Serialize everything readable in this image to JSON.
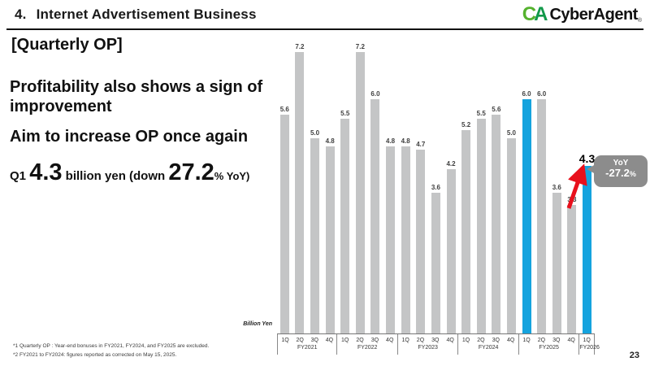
{
  "header": {
    "number": "4.",
    "title": "Internet Advertisement Business"
  },
  "logo": {
    "mark_c": "C",
    "mark_a": "A",
    "word": "CyberAgent",
    "registered": "®"
  },
  "left": {
    "section_label": "[Quarterly OP]",
    "message1_lines": [
      "Profitability also shows a sign of",
      "improvement"
    ],
    "message2": "Aim to increase OP once again",
    "q1_prefix": "Q1 ",
    "q1_value": "4.3",
    "q1_mid": " billion yen (down ",
    "q1_pct": "27.2",
    "q1_suffix": "% YoY)"
  },
  "chart_data": {
    "type": "bar",
    "unit_label": "Billion Yen",
    "bar_color": "#c4c5c6",
    "highlight_color": "#15a3de",
    "ylim": [
      0,
      7.5
    ],
    "groups": [
      {
        "fy": "FY2021",
        "quarters": [
          "1Q",
          "2Q",
          "3Q",
          "4Q"
        ],
        "values": [
          5.6,
          7.2,
          5.0,
          4.8
        ],
        "highlight": [
          false,
          false,
          false,
          false
        ]
      },
      {
        "fy": "FY2022",
        "quarters": [
          "1Q",
          "2Q",
          "3Q",
          "4Q"
        ],
        "values": [
          5.5,
          7.2,
          6.0,
          4.8
        ],
        "highlight": [
          false,
          false,
          false,
          false
        ]
      },
      {
        "fy": "FY2023",
        "quarters": [
          "1Q",
          "2Q",
          "3Q",
          "4Q"
        ],
        "values": [
          4.8,
          4.7,
          3.6,
          4.2
        ],
        "highlight": [
          false,
          false,
          false,
          false
        ]
      },
      {
        "fy": "FY2024",
        "quarters": [
          "1Q",
          "2Q",
          "3Q",
          "4Q"
        ],
        "values": [
          5.2,
          5.5,
          5.6,
          5.0
        ],
        "highlight": [
          false,
          false,
          false,
          false
        ]
      },
      {
        "fy": "FY2025",
        "quarters": [
          "1Q",
          "2Q",
          "3Q",
          "4Q"
        ],
        "values": [
          6.0,
          6.0,
          3.6,
          3.3
        ],
        "highlight": [
          true,
          false,
          false,
          false
        ]
      },
      {
        "fy": "FY2026",
        "quarters": [
          "1Q"
        ],
        "values": [
          4.3
        ],
        "highlight": [
          true
        ],
        "big_label": true
      }
    ],
    "callout": {
      "line1": "YoY",
      "line2": "-27.2",
      "pct_symbol": "%"
    }
  },
  "footnotes": [
    "*1  Quarterly OP : Year-end bonuses in FY2021, FY2024, and FY2025 are excluded.",
    "*2  FY2021 to FY2024: figures reported as corrected on May 15, 2025."
  ],
  "page_number": "23"
}
